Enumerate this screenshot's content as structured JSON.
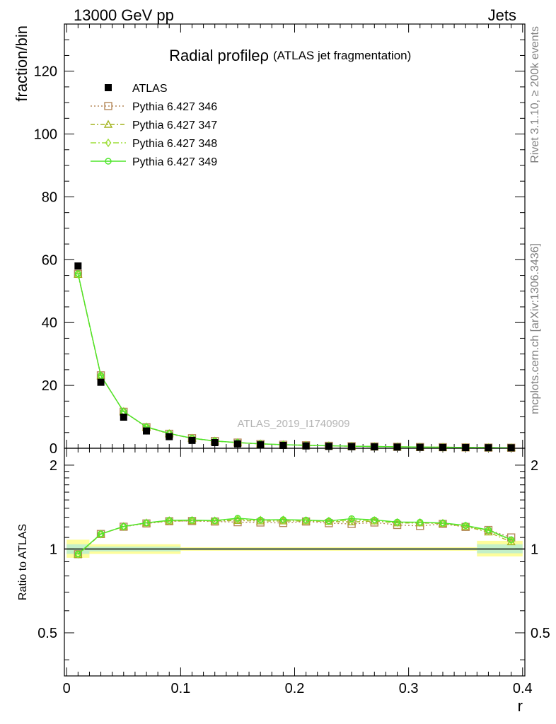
{
  "header": {
    "left": "13000 GeV pp",
    "right": "Jets"
  },
  "side": {
    "rivet": "Rivet 3.1.10, ≥ 200k events",
    "mcplots": "mcplots.cern.ch [arXiv:1306.3436]"
  },
  "watermark": "ATLAS_2019_I1740909",
  "chart_data": {
    "type": "line",
    "title": "Radial profileρ",
    "subtitle": "(ATLAS jet fragmentation)",
    "ylabel": "fraction/bin",
    "xlabel": "r",
    "ratio_ylabel": "Ratio to ATLAS",
    "xlim": [
      -0.002,
      0.402
    ],
    "ylim": [
      0,
      135
    ],
    "ratio_ylim": [
      0.35,
      2.3
    ],
    "x_ticks": [
      "0",
      "0.1",
      "0.2",
      "0.3",
      "0.4"
    ],
    "x_tick_values": [
      0,
      0.1,
      0.2,
      0.3,
      0.4
    ],
    "y_ticks": [
      "0",
      "20",
      "40",
      "60",
      "80",
      "100",
      "120"
    ],
    "y_tick_values": [
      0,
      20,
      40,
      60,
      80,
      100,
      120
    ],
    "ratio_ticks": [
      "0.5",
      "1",
      "2"
    ],
    "ratio_tick_values": [
      0.5,
      1,
      2
    ],
    "x": [
      0.01,
      0.03,
      0.05,
      0.07,
      0.09,
      0.11,
      0.13,
      0.15,
      0.17,
      0.19,
      0.21,
      0.23,
      0.25,
      0.27,
      0.29,
      0.31,
      0.33,
      0.35,
      0.37,
      0.39
    ],
    "data": {
      "name": "ATLAS",
      "values": [
        58.0,
        21.0,
        9.9,
        5.5,
        3.7,
        2.5,
        1.8,
        1.4,
        1.1,
        0.9,
        0.75,
        0.62,
        0.52,
        0.44,
        0.37,
        0.31,
        0.26,
        0.22,
        0.18,
        0.15
      ]
    },
    "series": [
      {
        "name": "Pythia 6.427 346",
        "color": "#b5895a",
        "marker": "square",
        "dash": "2,3",
        "values": [
          55.5,
          23.2,
          11.6,
          6.7,
          4.6,
          3.2,
          2.3,
          1.8,
          1.4,
          1.1,
          0.95,
          0.78,
          0.65,
          0.56,
          0.46,
          0.38,
          0.33,
          0.27,
          0.21,
          0.165
        ],
        "ratio": [
          0.958,
          1.132,
          1.202,
          1.235,
          1.258,
          1.26,
          1.255,
          1.248,
          1.245,
          1.24,
          1.255,
          1.238,
          1.23,
          1.245,
          1.22,
          1.21,
          1.23,
          1.2,
          1.17,
          1.1
        ]
      },
      {
        "name": "Pythia 6.427 347",
        "color": "#a3b41e",
        "marker": "triangle",
        "dash": "6,3,2,3",
        "values": [
          55.3,
          23.0,
          11.7,
          6.75,
          4.65,
          3.15,
          2.28,
          1.78,
          1.38,
          1.13,
          0.94,
          0.78,
          0.64,
          0.55,
          0.455,
          0.385,
          0.32,
          0.265,
          0.21,
          0.16
        ],
        "ratio": [
          0.955,
          1.13,
          1.205,
          1.24,
          1.26,
          1.262,
          1.26,
          1.265,
          1.26,
          1.26,
          1.26,
          1.255,
          1.25,
          1.26,
          1.24,
          1.24,
          1.235,
          1.205,
          1.15,
          1.06
        ]
      },
      {
        "name": "Pythia 6.427 348",
        "color": "#9ede38",
        "marker": "diamond",
        "dash": "8,3,2,3",
        "values": [
          55.4,
          23.1,
          11.65,
          6.8,
          4.7,
          3.18,
          2.3,
          1.8,
          1.4,
          1.14,
          0.95,
          0.79,
          0.655,
          0.56,
          0.46,
          0.39,
          0.325,
          0.268,
          0.212,
          0.162
        ],
        "ratio": [
          0.957,
          1.131,
          1.203,
          1.24,
          1.265,
          1.268,
          1.263,
          1.28,
          1.27,
          1.272,
          1.265,
          1.26,
          1.27,
          1.265,
          1.245,
          1.245,
          1.238,
          1.21,
          1.165,
          1.075
        ]
      },
      {
        "name": "Pythia 6.427 349",
        "color": "#4ee62a",
        "marker": "circle",
        "dash": "",
        "values": [
          55.6,
          23.15,
          11.68,
          6.82,
          4.72,
          3.19,
          2.31,
          1.82,
          1.41,
          1.15,
          0.955,
          0.795,
          0.66,
          0.565,
          0.465,
          0.392,
          0.328,
          0.27,
          0.214,
          0.163
        ],
        "ratio": [
          0.96,
          1.133,
          1.205,
          1.242,
          1.268,
          1.27,
          1.265,
          1.29,
          1.272,
          1.275,
          1.27,
          1.262,
          1.285,
          1.272,
          1.25,
          1.248,
          1.24,
          1.215,
          1.17,
          1.08
        ]
      }
    ],
    "uncertainty_bands": [
      {
        "x0": 0.0,
        "x1": 0.02,
        "lo_outer": 0.93,
        "hi_outer": 1.08,
        "lo_inner": 0.96,
        "hi_inner": 1.04
      },
      {
        "x0": 0.02,
        "x1": 0.1,
        "lo_outer": 0.96,
        "hi_outer": 1.04,
        "lo_inner": 0.98,
        "hi_inner": 1.02
      },
      {
        "x0": 0.1,
        "x1": 0.36,
        "lo_outer": 0.985,
        "hi_outer": 1.015,
        "lo_inner": 0.993,
        "hi_inner": 1.007
      },
      {
        "x0": 0.36,
        "x1": 0.4,
        "lo_outer": 0.94,
        "hi_outer": 1.07,
        "lo_inner": 0.965,
        "hi_inner": 1.04
      }
    ],
    "grid": false,
    "legend_position": "top-left"
  }
}
